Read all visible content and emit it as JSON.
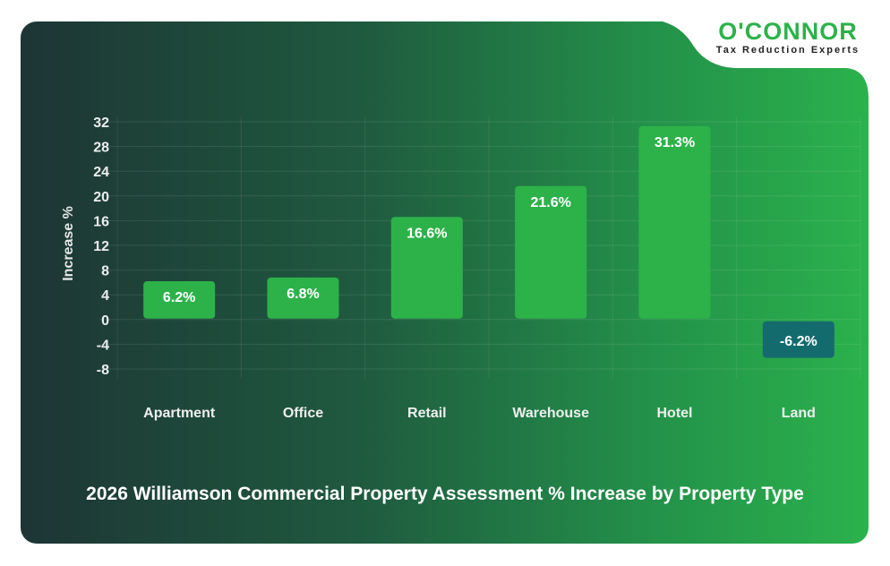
{
  "logo": {
    "brand": "O'CONNOR",
    "tagline": "Tax Reduction Experts"
  },
  "chart_data": {
    "type": "bar",
    "title": "2026 Williamson Commercial Property Assessment % Increase by Property Type",
    "xlabel": "",
    "ylabel": "Increase %",
    "categories": [
      "Apartment",
      "Office",
      "Retail",
      "Warehouse",
      "Hotel",
      "Land"
    ],
    "values": [
      6.2,
      6.8,
      16.6,
      21.6,
      31.3,
      -6.2
    ],
    "data_labels": [
      "6.2%",
      "6.8%",
      "16.6%",
      "21.6%",
      "31.3%",
      "-6.2%"
    ],
    "ylim": [
      -8,
      32
    ],
    "yticks": [
      32,
      28,
      24,
      20,
      16,
      12,
      8,
      4,
      0,
      -4,
      -8
    ],
    "grid": true,
    "colors": {
      "positive": "#2db24a",
      "negative": "#146b6e"
    }
  }
}
